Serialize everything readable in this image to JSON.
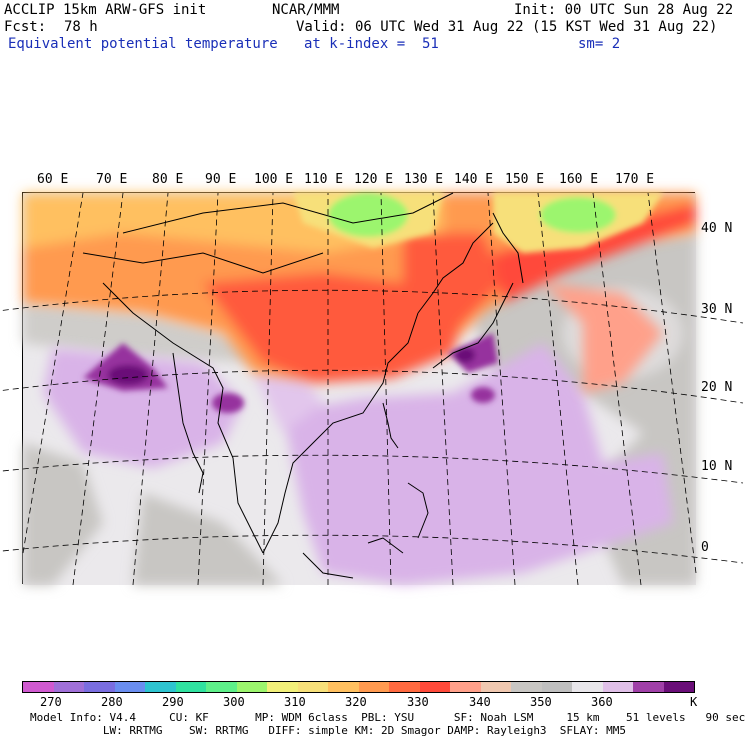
{
  "header": {
    "model": "ACCLIP 15km ARW-GFS init",
    "center": "NCAR/MMM",
    "init": "Init: 00 UTC Sun 28 Aug 22",
    "fcst_label": "Fcst:",
    "fcst_value": "78 h",
    "valid": "Valid: 06 UTC Wed 31 Aug 22 (15 KST Wed 31 Aug 22)",
    "field": "Equivalent potential temperature",
    "level": "at k-index =  51",
    "smoothing": "sm= 2"
  },
  "map": {
    "lon_labels": [
      "60 E",
      "70 E",
      "80 E",
      "90 E",
      "100 E",
      "110 E",
      "120 E",
      "130 E",
      "140 E",
      "150 E",
      "160 E",
      "170 E"
    ],
    "lat_labels": [
      "40 N",
      "30 N",
      "20 N",
      "10 N",
      "0"
    ],
    "colors": {
      "hot": "#ff5a3c",
      "warm": "#ff9a50",
      "yellow": "#f7e07a",
      "green": "#9cf56e",
      "grey": "#c8c6c3",
      "light": "#ebe9ec",
      "lilac": "#d9b3e8",
      "purple": "#96309e",
      "deep_purple": "#6a0e78"
    }
  },
  "colorbar": {
    "colors": [
      "#d05ad0",
      "#a070d8",
      "#7a6ee0",
      "#6a8ef0",
      "#2ec4d0",
      "#30e2a0",
      "#5ef08a",
      "#9cf56e",
      "#f2f07a",
      "#f7e07a",
      "#ffc060",
      "#ff9a50",
      "#ff6a40",
      "#ff4a3a",
      "#ffa08a",
      "#f0c8b0",
      "#c8c6c3",
      "#bfbfbf",
      "#e8e6ea",
      "#e0c0e8",
      "#a040a8",
      "#6a0e78"
    ],
    "labels": [
      "270",
      "280",
      "290",
      "300",
      "310",
      "320",
      "330",
      "340",
      "350",
      "360"
    ],
    "unit": "K"
  },
  "footer": {
    "line1": "Model Info: V4.4     CU: KF       MP: WDM 6class  PBL: YSU      SF: Noah LSM     15 km    51 levels   90 sec",
    "line2": "           LW: RRTMG    SW: RRTMG   DIFF: simple KM: 2D Smagor DAMP: Rayleigh3  SFLAY: MM5"
  }
}
